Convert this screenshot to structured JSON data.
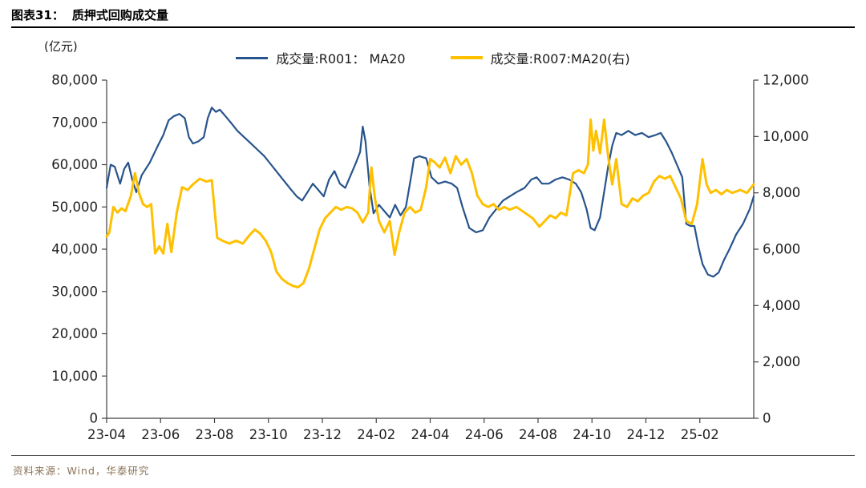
{
  "title": {
    "prefix": "图表31：",
    "text": "质押式回购成交量"
  },
  "unit_label": "(亿元)",
  "footer": {
    "source": "资料来源：Wind，华泰研究"
  },
  "chart_data": {
    "type": "line",
    "title": "质押式回购成交量",
    "unit_left": "亿元",
    "legend_position": "top-center",
    "grid": false,
    "x_total_months": 24,
    "x_ticks": [
      {
        "m": 0,
        "label": "23-04"
      },
      {
        "m": 2,
        "label": "23-06"
      },
      {
        "m": 4,
        "label": "23-08"
      },
      {
        "m": 6,
        "label": "23-10"
      },
      {
        "m": 8,
        "label": "23-12"
      },
      {
        "m": 10,
        "label": "24-02"
      },
      {
        "m": 12,
        "label": "24-04"
      },
      {
        "m": 14,
        "label": "24-06"
      },
      {
        "m": 16,
        "label": "24-08"
      },
      {
        "m": 18,
        "label": "24-10"
      },
      {
        "m": 20,
        "label": "24-12"
      },
      {
        "m": 22,
        "label": "25-02"
      }
    ],
    "left_axis": {
      "min": 0,
      "max": 80000,
      "step": 10000
    },
    "right_axis": {
      "min": 0,
      "max": 12000,
      "step": 2000
    },
    "series": [
      {
        "name": "成交量:R001： MA20",
        "axis": "left",
        "color": "#27548C",
        "width": 2.2,
        "points": [
          [
            0.0,
            54500
          ],
          [
            0.15,
            60000
          ],
          [
            0.3,
            59500
          ],
          [
            0.5,
            55500
          ],
          [
            0.65,
            59000
          ],
          [
            0.8,
            60500
          ],
          [
            0.95,
            56500
          ],
          [
            1.1,
            53500
          ],
          [
            1.3,
            57500
          ],
          [
            1.6,
            60500
          ],
          [
            1.9,
            64500
          ],
          [
            2.1,
            67000
          ],
          [
            2.3,
            70500
          ],
          [
            2.5,
            71500
          ],
          [
            2.7,
            72000
          ],
          [
            2.9,
            71000
          ],
          [
            3.05,
            66500
          ],
          [
            3.2,
            65000
          ],
          [
            3.4,
            65500
          ],
          [
            3.6,
            66500
          ],
          [
            3.75,
            71000
          ],
          [
            3.9,
            73500
          ],
          [
            4.05,
            72500
          ],
          [
            4.2,
            73000
          ],
          [
            4.4,
            71500
          ],
          [
            4.6,
            70000
          ],
          [
            4.85,
            68000
          ],
          [
            5.1,
            66500
          ],
          [
            5.35,
            65000
          ],
          [
            5.6,
            63500
          ],
          [
            5.85,
            62000
          ],
          [
            6.1,
            60000
          ],
          [
            6.35,
            58000
          ],
          [
            6.6,
            56000
          ],
          [
            6.85,
            54000
          ],
          [
            7.05,
            52500
          ],
          [
            7.25,
            51500
          ],
          [
            7.45,
            53500
          ],
          [
            7.65,
            55500
          ],
          [
            7.85,
            54000
          ],
          [
            8.05,
            52500
          ],
          [
            8.25,
            56500
          ],
          [
            8.45,
            58500
          ],
          [
            8.65,
            55500
          ],
          [
            8.85,
            54500
          ],
          [
            9.05,
            57500
          ],
          [
            9.25,
            60500
          ],
          [
            9.4,
            63000
          ],
          [
            9.5,
            69000
          ],
          [
            9.6,
            65500
          ],
          [
            9.75,
            55000
          ],
          [
            9.9,
            48500
          ],
          [
            10.1,
            50500
          ],
          [
            10.3,
            49000
          ],
          [
            10.5,
            47500
          ],
          [
            10.7,
            50500
          ],
          [
            10.9,
            48000
          ],
          [
            11.1,
            50000
          ],
          [
            11.3,
            57500
          ],
          [
            11.4,
            61500
          ],
          [
            11.6,
            62000
          ],
          [
            11.85,
            61500
          ],
          [
            12.05,
            57000
          ],
          [
            12.3,
            55500
          ],
          [
            12.55,
            56000
          ],
          [
            12.8,
            55500
          ],
          [
            13.0,
            54500
          ],
          [
            13.2,
            50000
          ],
          [
            13.45,
            45000
          ],
          [
            13.7,
            44000
          ],
          [
            13.95,
            44500
          ],
          [
            14.2,
            47500
          ],
          [
            14.45,
            49500
          ],
          [
            14.7,
            51500
          ],
          [
            14.95,
            52500
          ],
          [
            15.2,
            53500
          ],
          [
            15.5,
            54500
          ],
          [
            15.75,
            56500
          ],
          [
            15.95,
            57000
          ],
          [
            16.15,
            55500
          ],
          [
            16.4,
            55500
          ],
          [
            16.65,
            56500
          ],
          [
            16.9,
            57000
          ],
          [
            17.15,
            56500
          ],
          [
            17.4,
            55500
          ],
          [
            17.6,
            53500
          ],
          [
            17.8,
            49500
          ],
          [
            17.95,
            45000
          ],
          [
            18.1,
            44500
          ],
          [
            18.3,
            47500
          ],
          [
            18.45,
            53500
          ],
          [
            18.6,
            59500
          ],
          [
            18.75,
            64500
          ],
          [
            18.9,
            67500
          ],
          [
            19.1,
            67000
          ],
          [
            19.35,
            68000
          ],
          [
            19.6,
            67000
          ],
          [
            19.85,
            67500
          ],
          [
            20.1,
            66500
          ],
          [
            20.35,
            67000
          ],
          [
            20.55,
            67500
          ],
          [
            20.75,
            65500
          ],
          [
            20.95,
            63000
          ],
          [
            21.15,
            60000
          ],
          [
            21.35,
            57000
          ],
          [
            21.5,
            46000
          ],
          [
            21.65,
            45500
          ],
          [
            21.8,
            45500
          ],
          [
            21.95,
            40500
          ],
          [
            22.1,
            36500
          ],
          [
            22.3,
            34000
          ],
          [
            22.5,
            33500
          ],
          [
            22.7,
            34500
          ],
          [
            22.9,
            37500
          ],
          [
            23.1,
            40000
          ],
          [
            23.35,
            43500
          ],
          [
            23.6,
            46000
          ],
          [
            23.85,
            49500
          ],
          [
            24.0,
            52500
          ]
        ]
      },
      {
        "name": "成交量:R007:MA20(右)",
        "axis": "right",
        "color": "#FFC000",
        "width": 3,
        "points": [
          [
            0.0,
            6450
          ],
          [
            0.1,
            6600
          ],
          [
            0.25,
            7500
          ],
          [
            0.4,
            7300
          ],
          [
            0.55,
            7450
          ],
          [
            0.7,
            7350
          ],
          [
            0.9,
            7900
          ],
          [
            1.05,
            8700
          ],
          [
            1.2,
            8000
          ],
          [
            1.35,
            7600
          ],
          [
            1.5,
            7500
          ],
          [
            1.65,
            7600
          ],
          [
            1.8,
            5850
          ],
          [
            1.95,
            6100
          ],
          [
            2.1,
            5850
          ],
          [
            2.25,
            6900
          ],
          [
            2.4,
            5900
          ],
          [
            2.6,
            7300
          ],
          [
            2.8,
            8200
          ],
          [
            3.0,
            8100
          ],
          [
            3.2,
            8300
          ],
          [
            3.45,
            8500
          ],
          [
            3.7,
            8400
          ],
          [
            3.9,
            8450
          ],
          [
            4.1,
            6400
          ],
          [
            4.3,
            6300
          ],
          [
            4.55,
            6200
          ],
          [
            4.8,
            6300
          ],
          [
            5.05,
            6200
          ],
          [
            5.3,
            6500
          ],
          [
            5.5,
            6700
          ],
          [
            5.7,
            6550
          ],
          [
            5.9,
            6300
          ],
          [
            6.1,
            5900
          ],
          [
            6.3,
            5200
          ],
          [
            6.5,
            4950
          ],
          [
            6.7,
            4800
          ],
          [
            6.9,
            4700
          ],
          [
            7.1,
            4650
          ],
          [
            7.3,
            4800
          ],
          [
            7.5,
            5300
          ],
          [
            7.7,
            6000
          ],
          [
            7.9,
            6700
          ],
          [
            8.1,
            7100
          ],
          [
            8.3,
            7300
          ],
          [
            8.5,
            7500
          ],
          [
            8.7,
            7400
          ],
          [
            8.9,
            7500
          ],
          [
            9.1,
            7450
          ],
          [
            9.3,
            7300
          ],
          [
            9.5,
            6950
          ],
          [
            9.7,
            7300
          ],
          [
            9.82,
            8900
          ],
          [
            9.95,
            7800
          ],
          [
            10.1,
            7000
          ],
          [
            10.3,
            6600
          ],
          [
            10.5,
            7000
          ],
          [
            10.68,
            5800
          ],
          [
            10.85,
            6600
          ],
          [
            11.05,
            7300
          ],
          [
            11.25,
            7500
          ],
          [
            11.45,
            7300
          ],
          [
            11.65,
            7400
          ],
          [
            11.85,
            8200
          ],
          [
            12.0,
            9200
          ],
          [
            12.15,
            9100
          ],
          [
            12.35,
            8900
          ],
          [
            12.55,
            9250
          ],
          [
            12.75,
            8700
          ],
          [
            12.95,
            9300
          ],
          [
            13.15,
            9000
          ],
          [
            13.35,
            9200
          ],
          [
            13.55,
            8700
          ],
          [
            13.75,
            7900
          ],
          [
            13.95,
            7600
          ],
          [
            14.15,
            7500
          ],
          [
            14.35,
            7600
          ],
          [
            14.55,
            7400
          ],
          [
            14.75,
            7500
          ],
          [
            14.95,
            7400
          ],
          [
            15.2,
            7500
          ],
          [
            15.5,
            7300
          ],
          [
            15.8,
            7100
          ],
          [
            16.05,
            6800
          ],
          [
            16.25,
            7000
          ],
          [
            16.45,
            7200
          ],
          [
            16.65,
            7100
          ],
          [
            16.85,
            7300
          ],
          [
            17.05,
            7200
          ],
          [
            17.3,
            8700
          ],
          [
            17.5,
            8800
          ],
          [
            17.7,
            8700
          ],
          [
            17.85,
            9000
          ],
          [
            17.95,
            10600
          ],
          [
            18.05,
            9500
          ],
          [
            18.15,
            10200
          ],
          [
            18.3,
            9400
          ],
          [
            18.45,
            10600
          ],
          [
            18.6,
            9300
          ],
          [
            18.75,
            8300
          ],
          [
            18.9,
            9200
          ],
          [
            19.1,
            7600
          ],
          [
            19.3,
            7500
          ],
          [
            19.5,
            7800
          ],
          [
            19.7,
            7700
          ],
          [
            19.9,
            7900
          ],
          [
            20.1,
            8000
          ],
          [
            20.3,
            8400
          ],
          [
            20.5,
            8600
          ],
          [
            20.7,
            8500
          ],
          [
            20.9,
            8600
          ],
          [
            21.1,
            8200
          ],
          [
            21.3,
            7800
          ],
          [
            21.5,
            7000
          ],
          [
            21.7,
            6900
          ],
          [
            21.9,
            7600
          ],
          [
            22.1,
            9200
          ],
          [
            22.25,
            8300
          ],
          [
            22.4,
            8000
          ],
          [
            22.6,
            8100
          ],
          [
            22.8,
            7950
          ],
          [
            23.0,
            8100
          ],
          [
            23.2,
            8000
          ],
          [
            23.5,
            8100
          ],
          [
            23.75,
            8000
          ],
          [
            24.0,
            8300
          ]
        ]
      }
    ]
  }
}
